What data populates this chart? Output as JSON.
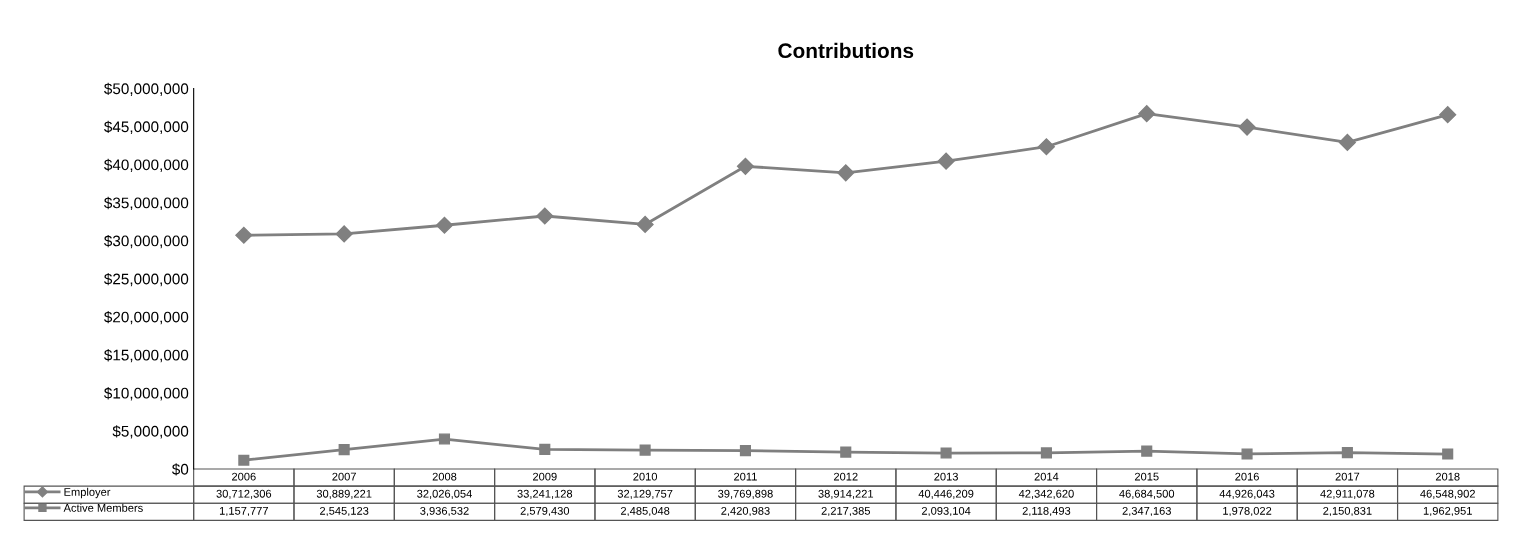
{
  "chart_data": {
    "type": "line",
    "title": "Contributions",
    "categories": [
      "2006",
      "2007",
      "2008",
      "2009",
      "2010",
      "2011",
      "2012",
      "2013",
      "2014",
      "2015",
      "2016",
      "2017",
      "2018"
    ],
    "series": [
      {
        "name": "Employer",
        "color": "#808080",
        "marker": "diamond",
        "values": [
          30712306,
          30889221,
          32026054,
          33241128,
          32129757,
          39769898,
          38914221,
          40446209,
          42342620,
          46684500,
          44926043,
          42911078,
          46548902
        ],
        "value_labels": [
          "30,712,306",
          "30,889,221",
          "32,026,054",
          "33,241,128",
          "32,129,757",
          "39,769,898",
          "38,914,221",
          "40,446,209",
          "42,342,620",
          "46,684,500",
          "44,926,043",
          "42,911,078",
          "46,548,902"
        ]
      },
      {
        "name": "Active Members",
        "color": "#7f7f7f",
        "marker": "square",
        "values": [
          1157777,
          2545123,
          3936532,
          2579430,
          2485048,
          2420983,
          2217385,
          2093104,
          2118493,
          2347163,
          1978022,
          2150831,
          1962951
        ],
        "value_labels": [
          "1,157,777",
          "2,545,123",
          "3,936,532",
          "2,579,430",
          "2,485,048",
          "2,420,983",
          "2,217,385",
          "2,093,104",
          "2,118,493",
          "2,347,163",
          "1,978,022",
          "2,150,831",
          "1,962,951"
        ]
      }
    ],
    "ylim": [
      0,
      50000000
    ],
    "yticks": [
      {
        "value": 0,
        "label": "$0"
      },
      {
        "value": 5000000,
        "label": "$5,000,000"
      },
      {
        "value": 10000000,
        "label": "$10,000,000"
      },
      {
        "value": 15000000,
        "label": "$15,000,000"
      },
      {
        "value": 20000000,
        "label": "$20,000,000"
      },
      {
        "value": 25000000,
        "label": "$25,000,000"
      },
      {
        "value": 30000000,
        "label": "$30,000,000"
      },
      {
        "value": 35000000,
        "label": "$35,000,000"
      },
      {
        "value": 40000000,
        "label": "$40,000,000"
      },
      {
        "value": 45000000,
        "label": "$45,000,000"
      },
      {
        "value": 50000000,
        "label": "$50,000,000"
      }
    ],
    "data_labels": true,
    "legend": "bottom left",
    "grid": false
  }
}
